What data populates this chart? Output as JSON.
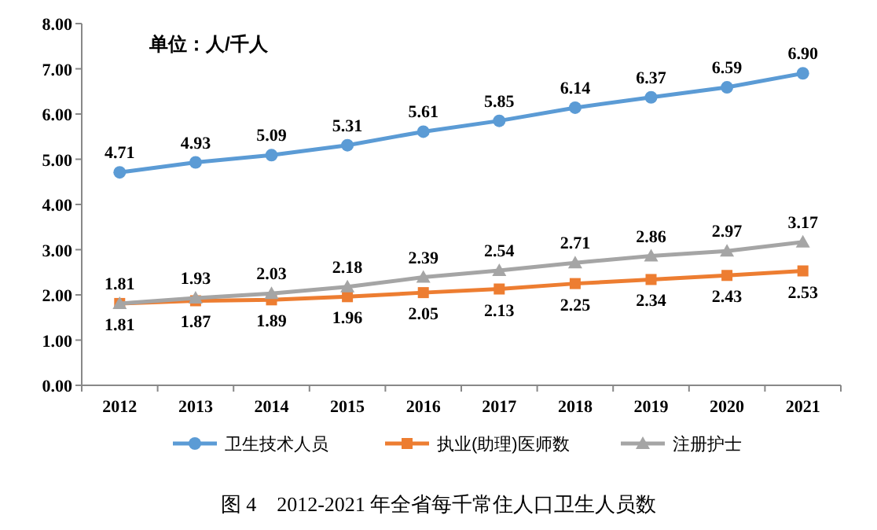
{
  "chart_data": {
    "type": "line",
    "categories": [
      "2012",
      "2013",
      "2014",
      "2015",
      "2016",
      "2017",
      "2018",
      "2019",
      "2020",
      "2021"
    ],
    "series": [
      {
        "name": "卫生技术人员",
        "color": "#5b9bd5",
        "marker": "circle",
        "values": [
          4.71,
          4.93,
          5.09,
          5.31,
          5.61,
          5.85,
          6.14,
          6.37,
          6.59,
          6.9
        ],
        "value_labels": [
          "4.71",
          "4.93",
          "5.09",
          "5.31",
          "5.61",
          "5.85",
          "6.14",
          "6.37",
          "6.59",
          "6.90"
        ]
      },
      {
        "name": "执业(助理)医师数",
        "color": "#ed7d31",
        "marker": "square",
        "values": [
          1.81,
          1.87,
          1.89,
          1.96,
          2.05,
          2.13,
          2.25,
          2.34,
          2.43,
          2.53
        ],
        "value_labels": [
          "1.81",
          "1.87",
          "1.89",
          "1.96",
          "2.05",
          "2.13",
          "2.25",
          "2.34",
          "2.43",
          "2.53"
        ]
      },
      {
        "name": "注册护士",
        "color": "#a5a5a5",
        "marker": "triangle",
        "values": [
          1.81,
          1.93,
          2.03,
          2.18,
          2.39,
          2.54,
          2.71,
          2.86,
          2.97,
          3.17
        ],
        "value_labels": [
          "1.81",
          "1.93",
          "2.03",
          "2.18",
          "2.39",
          "2.54",
          "2.71",
          "2.86",
          "2.97",
          "3.17"
        ]
      }
    ],
    "ylim": [
      0,
      8
    ],
    "yticks": [
      {
        "value": 0,
        "label": "0.00"
      },
      {
        "value": 1,
        "label": "1.00"
      },
      {
        "value": 2,
        "label": "2.00"
      },
      {
        "value": 3,
        "label": "3.00"
      },
      {
        "value": 4,
        "label": "4.00"
      },
      {
        "value": 5,
        "label": "5.00"
      },
      {
        "value": 6,
        "label": "6.00"
      },
      {
        "value": 7,
        "label": "7.00"
      },
      {
        "value": 8,
        "label": "8.00"
      }
    ],
    "grid": false,
    "legend": "bottom",
    "line_style": "solid",
    "annotations": [
      "单位：人/千人",
      "图 4    2012-2021 年全省每千常住人口卫生人员数"
    ]
  }
}
